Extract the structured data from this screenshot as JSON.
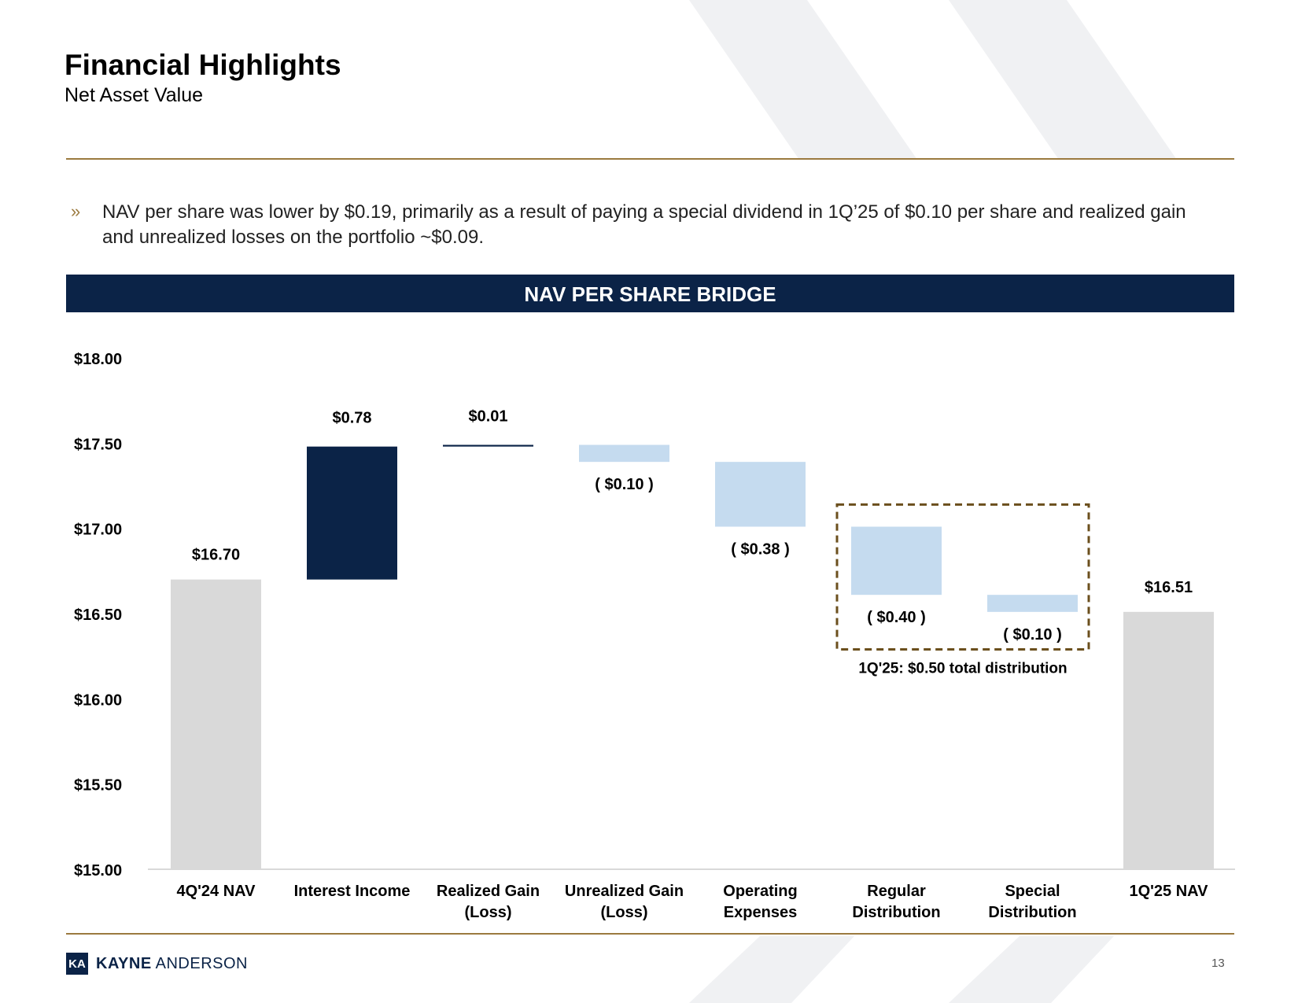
{
  "header": {
    "title": "Financial Highlights",
    "subtitle": "Net Asset Value"
  },
  "bullet": {
    "marker": "»",
    "text": "NAV per share was lower by $0.19, primarily as a result of paying a special dividend in 1Q’25 of $0.10 per share and realized gain and unrealized losses on the portfolio ~$0.09."
  },
  "banner": {
    "title": "NAV PER SHARE BRIDGE"
  },
  "colors": {
    "navy": "#0b2347",
    "gold": "#9b7a3f",
    "light_blue": "#c5dbef",
    "gray": "#d9d9d9",
    "stripe": "#f0f1f3",
    "dash_box": "#6b4f1d"
  },
  "chart_data": {
    "type": "bar",
    "subtype": "waterfall",
    "title": "NAV PER SHARE BRIDGE",
    "ylim": [
      15.0,
      18.0
    ],
    "yticks": [
      15.0,
      15.5,
      16.0,
      16.5,
      17.0,
      17.5,
      18.0
    ],
    "ytick_labels": [
      "$15.00",
      "$15.50",
      "$16.00",
      "$16.50",
      "$17.00",
      "$17.50",
      "$18.00"
    ],
    "bars": [
      {
        "category": "4Q'24 NAV",
        "kind": "total",
        "start": 15.0,
        "end": 16.7,
        "label": "$16.70",
        "color": "gray"
      },
      {
        "category": "Interest Income",
        "kind": "increase",
        "start": 16.7,
        "end": 17.48,
        "label": "$0.78",
        "color": "navy"
      },
      {
        "category": "Realized Gain (Loss)",
        "kind": "increase",
        "start": 17.48,
        "end": 17.49,
        "label": "$0.01",
        "color": "navy"
      },
      {
        "category": "Unrealized Gain (Loss)",
        "kind": "decrease",
        "start": 17.49,
        "end": 17.39,
        "label": "( $0.10 )",
        "color": "light_blue"
      },
      {
        "category": "Operating Expenses",
        "kind": "decrease",
        "start": 17.39,
        "end": 17.01,
        "label": "( $0.38 )",
        "color": "light_blue"
      },
      {
        "category": "Regular Distribution",
        "kind": "decrease",
        "start": 17.01,
        "end": 16.61,
        "label": "( $0.40 )",
        "color": "light_blue"
      },
      {
        "category": "Special Distribution",
        "kind": "decrease",
        "start": 16.61,
        "end": 16.51,
        "label": "( $0.10 )",
        "color": "light_blue"
      },
      {
        "category": "1Q'25 NAV",
        "kind": "total",
        "start": 15.0,
        "end": 16.51,
        "label": "$16.51",
        "color": "gray"
      }
    ],
    "category_labels": [
      [
        "4Q'24 NAV"
      ],
      [
        "Interest Income"
      ],
      [
        "Realized Gain",
        "(Loss)"
      ],
      [
        "Unrealized Gain",
        "(Loss)"
      ],
      [
        "Operating",
        "Expenses"
      ],
      [
        "Regular",
        "Distribution"
      ],
      [
        "Special",
        "Distribution"
      ],
      [
        "1Q'25 NAV"
      ]
    ],
    "annotation": {
      "text": "1Q'25: $0.50 total distribution",
      "spans_categories": [
        "Regular Distribution",
        "Special Distribution"
      ]
    },
    "xlabel": "",
    "ylabel": ""
  },
  "footer": {
    "logo_mark": "KA",
    "logo_bold": "KAYNE",
    "logo_light": " ANDERSON",
    "page_number": "13"
  }
}
